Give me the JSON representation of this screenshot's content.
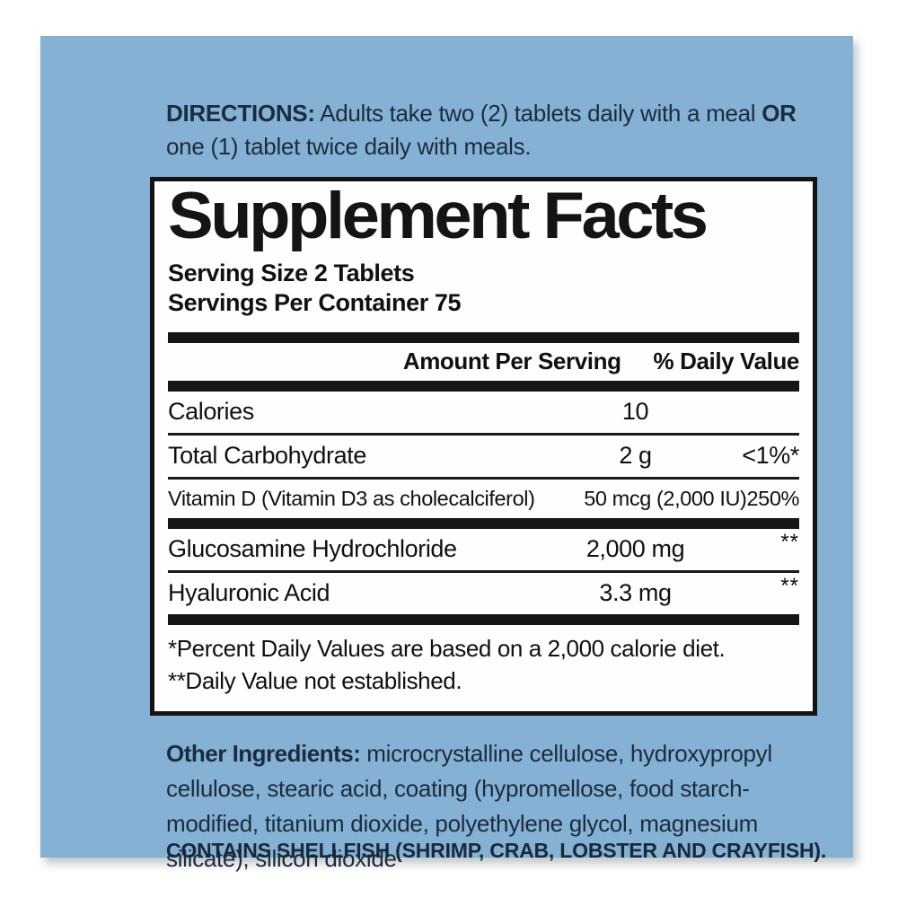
{
  "page": {
    "background_color": "#ffffff",
    "panel_color": "#84b1d4",
    "body_text_color": "#1b2c3e"
  },
  "directions": {
    "label": "DIRECTIONS:",
    "text1": " Adults take two (2) tablets daily with a meal ",
    "or_label": "OR",
    "text2": " one (1) tablet twice daily with meals."
  },
  "supplement": {
    "title": "Supplement Facts",
    "serving_size": "Serving Size 2 Tablets",
    "servings_per_container": "Servings Per Container 75",
    "columns": {
      "amount": "Amount Per Serving",
      "daily_value": "% Daily Value"
    },
    "rows": [
      {
        "name": "Calories",
        "amount": "10",
        "dv": ""
      },
      {
        "name": "Total Carbohydrate",
        "amount": "2 g",
        "dv": "<1%*"
      },
      {
        "name": "Vitamin D (Vitamin D3 as cholecalciferol)",
        "amount": "50 mcg (2,000 IU)",
        "dv": "250%"
      },
      {
        "name": "Glucosamine Hydrochloride",
        "amount": "2,000 mg",
        "dv": "**"
      },
      {
        "name": "Hyaluronic Acid",
        "amount": "3.3 mg",
        "dv": "**"
      }
    ],
    "footnote1": "*Percent Daily Values are based on a 2,000 calorie diet.",
    "footnote2": "**Daily Value not established."
  },
  "other_ingredients": {
    "label": "Other Ingredients:",
    "text": " microcrystalline cellulose, hydroxypropyl cellulose, stearic acid, coating (hypromellose, food starch-modified, titanium dioxide, polyethylene glycol, magnesium silicate), silicon dioxide"
  },
  "allergen": "CONTAINS SHELLFISH (SHRIMP, CRAB, LOBSTER AND CRAYFISH)."
}
